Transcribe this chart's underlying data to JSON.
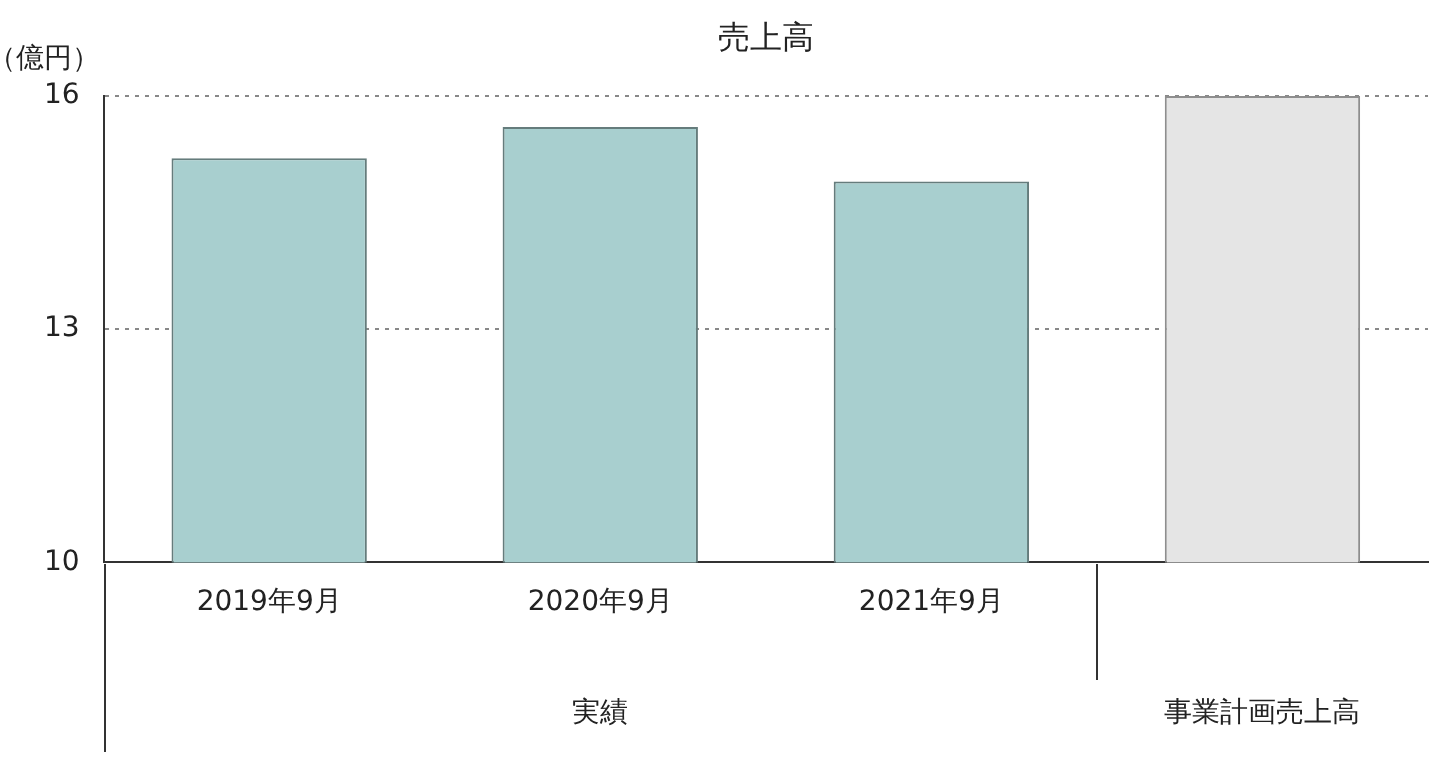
{
  "chart_data": {
    "type": "bar",
    "title": "売上高",
    "ylabel": "（億円）",
    "categories": [
      "2019年9月",
      "2020年9月",
      "2021年9月",
      null
    ],
    "values": [
      15.2,
      15.6,
      14.9,
      16
    ],
    "colors": [
      "#a8cfcf",
      "#a8cfcf",
      "#a8cfcf",
      "#e5e5e5"
    ],
    "ylim": [
      10,
      16
    ],
    "yticks": [
      10,
      13,
      16
    ],
    "grid": "y",
    "annotations": [
      "実績",
      "事業計画売上高"
    ]
  }
}
